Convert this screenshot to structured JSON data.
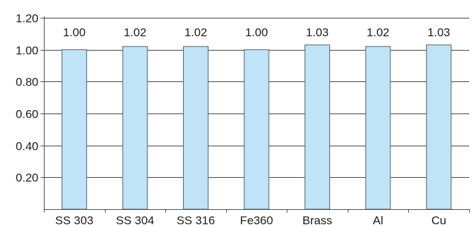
{
  "chart_data": {
    "type": "bar",
    "categories": [
      "SS 303",
      "SS 304",
      "SS 316",
      "Fe360",
      "Brass",
      "Al",
      "Cu"
    ],
    "values": [
      1.0,
      1.02,
      1.02,
      1.0,
      1.03,
      1.02,
      1.03
    ],
    "data_labels": [
      "1.00",
      "1.02",
      "1.02",
      "1.00",
      "1.03",
      "1.02",
      "1.03"
    ],
    "ylim": [
      0,
      1.2
    ],
    "yticks": [
      0.2,
      0.4,
      0.6,
      0.8,
      1.0,
      1.2
    ],
    "ytick_labels": [
      "0.20",
      "0.40",
      "0.60",
      "0.80",
      "1.00",
      "1.20"
    ],
    "title": "",
    "xlabel": "",
    "ylabel": "",
    "grid": true,
    "colors": {
      "bar_fill": "#bfe3f7",
      "bar_stroke": "#4f5a63",
      "grid": "#3f3f3f",
      "axis": "#4a4a4a"
    }
  }
}
